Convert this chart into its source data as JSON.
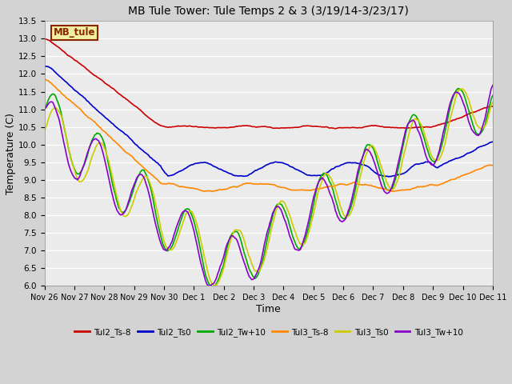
{
  "title": "MB Tule Tower: Tule Temps 2 & 3 (3/19/14-3/23/17)",
  "xlabel": "Time",
  "ylabel": "Temperature (C)",
  "ylim": [
    6.0,
    13.5
  ],
  "yticks": [
    6.0,
    6.5,
    7.0,
    7.5,
    8.0,
    8.5,
    9.0,
    9.5,
    10.0,
    10.5,
    11.0,
    11.5,
    12.0,
    12.5,
    13.0,
    13.5
  ],
  "fig_bg": "#d3d3d3",
  "plot_bg": "#ebebeb",
  "grid_color": "#ffffff",
  "annotation_text": "MB_tule",
  "annotation_box_facecolor": "#f0f0a0",
  "annotation_box_edgecolor": "#8b2500",
  "annotation_text_color": "#8b2500",
  "series": {
    "Tul2_Ts-8": {
      "color": "#cc0000",
      "lw": 1.2
    },
    "Tul2_Ts0": {
      "color": "#0000cc",
      "lw": 1.2
    },
    "Tul2_Tw+10": {
      "color": "#00aa00",
      "lw": 1.2
    },
    "Tul3_Ts-8": {
      "color": "#ff8800",
      "lw": 1.2
    },
    "Tul3_Ts0": {
      "color": "#cccc00",
      "lw": 1.2
    },
    "Tul3_Tw+10": {
      "color": "#8800cc",
      "lw": 1.2
    }
  },
  "xtick_labels": [
    "Nov 26",
    "Nov 27",
    "Nov 28",
    "Nov 29",
    "Nov 30",
    "Dec 1",
    "Dec 2",
    "Dec 3",
    "Dec 4",
    "Dec 5",
    "Dec 6",
    "Dec 7",
    "Dec 8",
    "Dec 9",
    "Dec 10",
    "Dec 11"
  ],
  "legend_labels": [
    "Tul2_Ts-8",
    "Tul2_Ts0",
    "Tul2_Tw+10",
    "Tul3_Ts-8",
    "Tul3_Ts0",
    "Tul3_Tw+10"
  ]
}
